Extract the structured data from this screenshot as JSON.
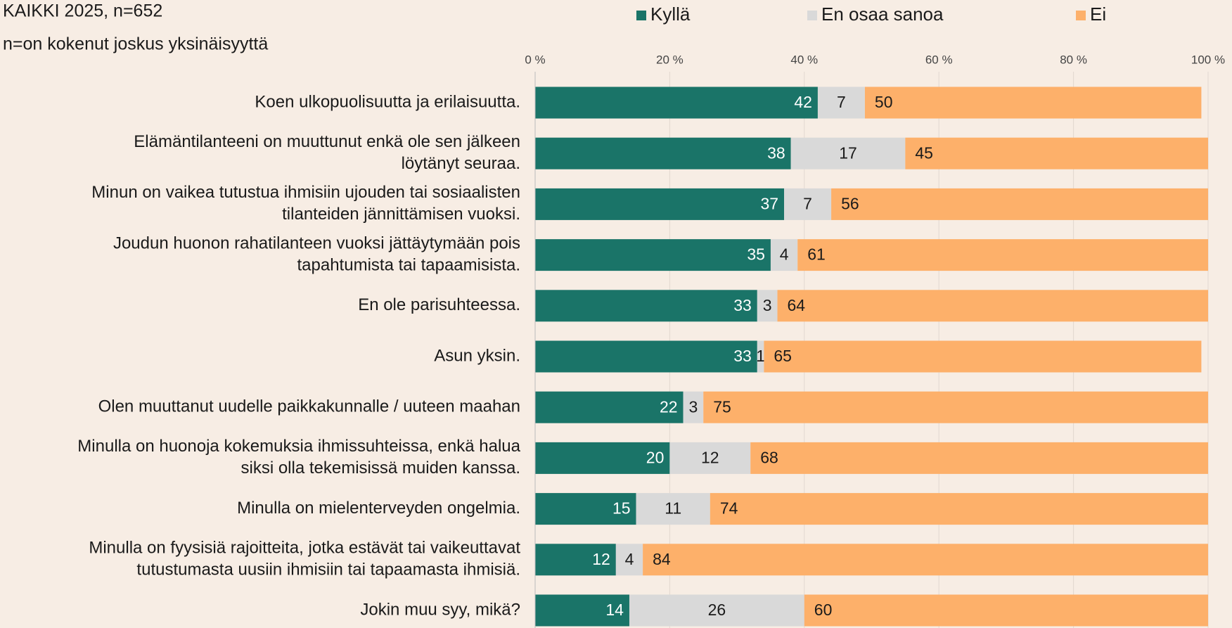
{
  "chart_data": {
    "type": "stacked_barh",
    "title": "KAIKKI 2025, n=652",
    "subtitle": "n=on kokenut joskus yksinäisyyttä",
    "categories": [
      [
        "Koen ulkopuolisuutta ja erilaisuutta."
      ],
      [
        "Elämäntilanteeni on muuttunut enkä ole sen jälkeen",
        "löytänyt seuraa."
      ],
      [
        "Minun on vaikea tutustua ihmisiin ujouden tai sosiaalisten",
        "tilanteiden jännittämisen vuoksi."
      ],
      [
        "Joudun huonon rahatilanteen vuoksi jättäytymään pois",
        "tapahtumista tai tapaamisista."
      ],
      [
        "En ole parisuhteessa."
      ],
      [
        "Asun yksin."
      ],
      [
        "Olen muuttanut uudelle paikkakunnalle / uuteen maahan"
      ],
      [
        "Minulla on huonoja kokemuksia ihmissuhteissa, enkä halua",
        "siksi olla tekemisissä muiden kanssa."
      ],
      [
        "Minulla on mielenterveyden ongelmia."
      ],
      [
        "Minulla on fyysisiä rajoitteita, jotka estävät tai vaikeuttavat",
        "tutustumasta uusiin ihmisiin tai tapaamasta ihmisiä."
      ],
      [
        "Jokin muu syy, mikä?"
      ]
    ],
    "series": [
      {
        "name": "Kyllä",
        "color": "#1a7468",
        "label_color": "#ffffff",
        "values": [
          42,
          38,
          37,
          35,
          33,
          33,
          22,
          20,
          15,
          12,
          14
        ]
      },
      {
        "name": "En osaa sanoa",
        "color": "#d9d9d9",
        "label_color": "#1a1a1a",
        "values": [
          7,
          17,
          7,
          4,
          3,
          1,
          3,
          12,
          11,
          4,
          26
        ]
      },
      {
        "name": "Ei",
        "color": "#fdb06a",
        "label_color": "#1a1a1a",
        "values": [
          50,
          45,
          56,
          61,
          64,
          65,
          75,
          68,
          74,
          84,
          60
        ]
      }
    ],
    "xlim": [
      0,
      100
    ],
    "xticks": [
      {
        "value": 0,
        "label": "0 %"
      },
      {
        "value": 20,
        "label": "20 %"
      },
      {
        "value": 40,
        "label": "40 %"
      },
      {
        "value": 60,
        "label": "60 %"
      },
      {
        "value": 80,
        "label": "80 %"
      },
      {
        "value": 100,
        "label": "100 %"
      }
    ],
    "grid": true,
    "legend": "top"
  }
}
